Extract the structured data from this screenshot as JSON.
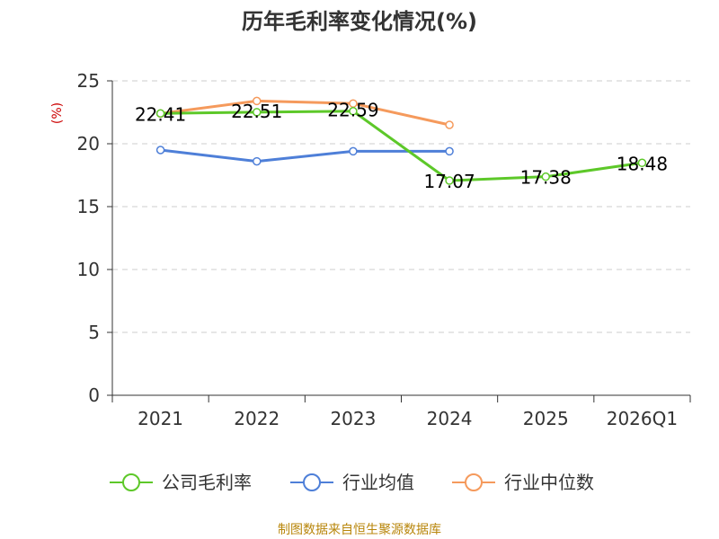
{
  "chart_data": {
    "type": "line",
    "title": "历年毛利率变化情况(%)",
    "ylabel": "(%)",
    "categories": [
      "2021",
      "2022",
      "2023",
      "2024",
      "2025",
      "2026Q1"
    ],
    "ylim": [
      0,
      25
    ],
    "yticks": [
      "0",
      "5",
      "10",
      "15",
      "20",
      "25"
    ],
    "grid": true,
    "legend_position": "bottom",
    "series": [
      {
        "name": "公司毛利率",
        "color": "#5dc829",
        "values": [
          22.41,
          22.51,
          22.59,
          17.07,
          17.38,
          18.48
        ],
        "labels": [
          "22.41",
          "22.51",
          "22.59",
          "17.07",
          "17.38",
          "18.48"
        ]
      },
      {
        "name": "行业均值",
        "color": "#4e7fd8",
        "values": [
          19.5,
          18.6,
          19.4,
          19.4,
          null,
          null
        ]
      },
      {
        "name": "行业中位数",
        "color": "#f59a5c",
        "values": [
          22.4,
          23.4,
          23.2,
          21.5,
          null,
          null
        ]
      }
    ]
  },
  "source": "制图数据来自恒生聚源数据库"
}
